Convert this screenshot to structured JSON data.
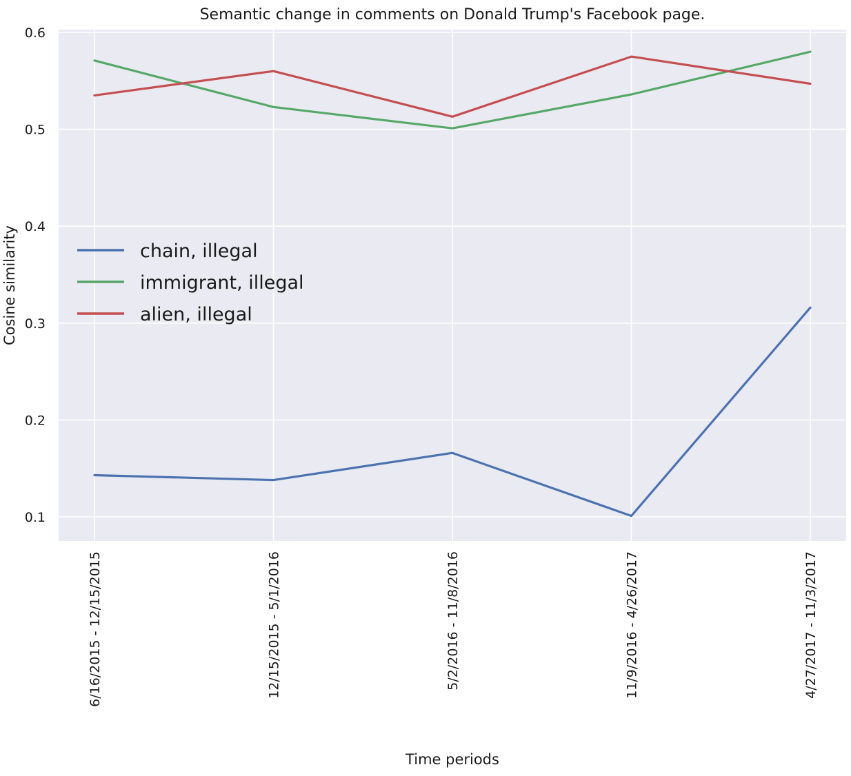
{
  "chart_data": {
    "type": "line",
    "title": "Semantic change in comments on Donald Trump's Facebook page.",
    "xlabel": "Time periods",
    "ylabel": "Cosine similarity",
    "categories": [
      "6/16/2015 - 12/15/2015",
      "12/15/2015 - 5/1/2016",
      "5/2/2016 - 11/8/2016",
      "11/9/2016 - 4/26/2017",
      "4/27/2017 - 11/3/2017"
    ],
    "ylim": [
      0.075,
      0.605
    ],
    "yticks": [
      0.1,
      0.2,
      0.3,
      0.4,
      0.5,
      0.6
    ],
    "ytick_labels": [
      "0.1",
      "0.2",
      "0.3",
      "0.4",
      "0.5",
      "0.6"
    ],
    "grid": true,
    "legend_position": "center-left",
    "series": [
      {
        "name": "chain, illegal",
        "color": "#4c72b0",
        "values": [
          0.143,
          0.138,
          0.166,
          0.101,
          0.316
        ]
      },
      {
        "name": "immigrant, illegal",
        "color": "#55a868",
        "values": [
          0.571,
          0.523,
          0.501,
          0.536,
          0.58
        ]
      },
      {
        "name": "alien, illegal",
        "color": "#c44e52",
        "values": [
          0.535,
          0.56,
          0.513,
          0.575,
          0.547
        ]
      }
    ],
    "background_color": "#eaeaf2",
    "grid_color": "#ffffff"
  }
}
